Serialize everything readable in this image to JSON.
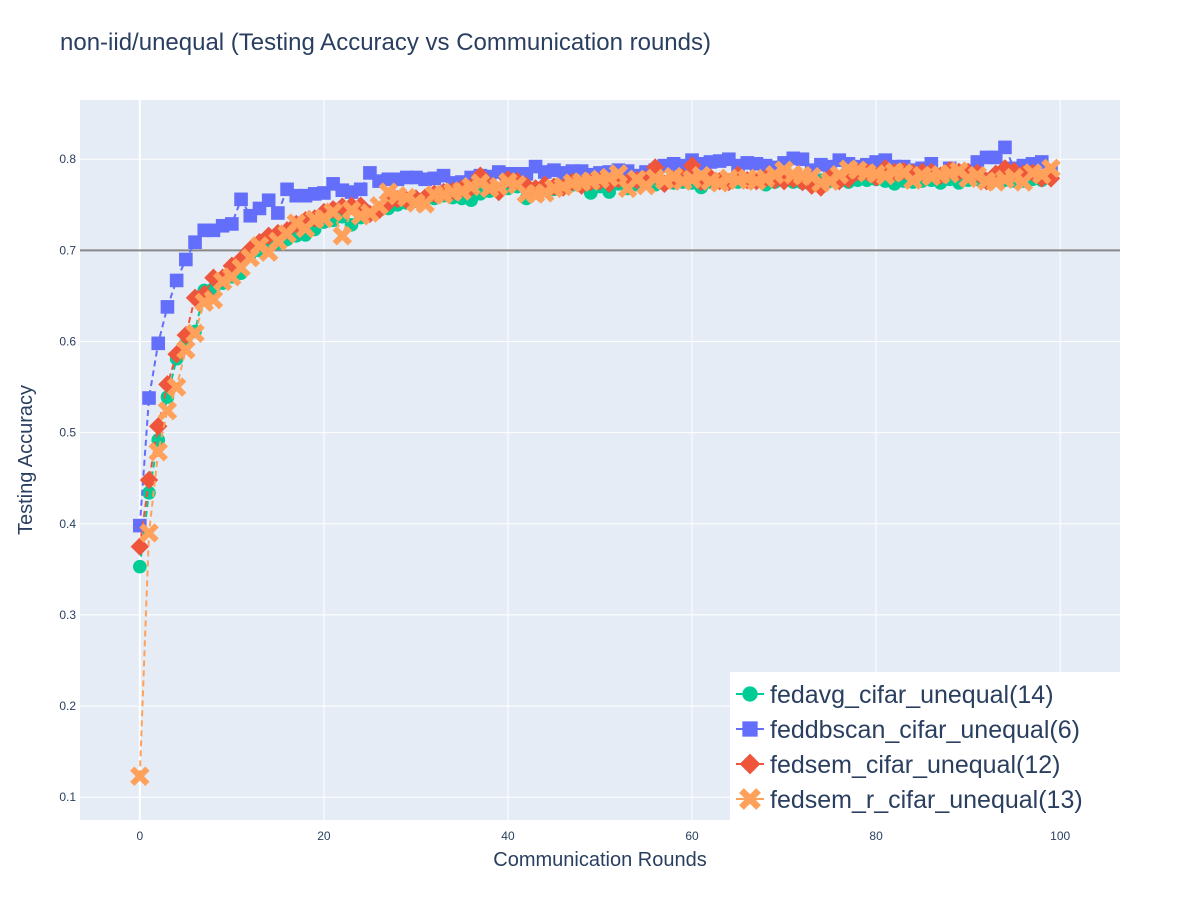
{
  "chart_data": {
    "type": "scatter",
    "title": "non-iid/unequal (Testing Accuracy vs Communication rounds)",
    "xlabel": "Communication Rounds",
    "ylabel": "Testing Accuracy",
    "xlim": [
      -6.5,
      106.5
    ],
    "ylim": [
      0.075,
      0.865
    ],
    "xticks": [
      0,
      20,
      40,
      60,
      80,
      100
    ],
    "yticks": [
      0.1,
      0.2,
      0.3,
      0.4,
      0.5,
      0.6,
      0.7,
      0.8
    ],
    "xtick_labels": [
      "0",
      "20",
      "40",
      "60",
      "80",
      "100"
    ],
    "ytick_labels": [
      "0.1",
      "0.2",
      "0.3",
      "0.4",
      "0.5",
      "0.6",
      "0.7",
      "0.8"
    ],
    "grid": true,
    "legend_position": "bottom-right",
    "reference_line": {
      "y": 0.7,
      "color": "#888888"
    },
    "series": [
      {
        "name": "fedavg_cifar_unequal(14)",
        "color": "#00cc96",
        "marker": "circle",
        "values": [
          0.353,
          0.434,
          0.492,
          0.539,
          0.581,
          0.598,
          0.611,
          0.656,
          0.658,
          0.664,
          0.671,
          0.675,
          0.696,
          0.7,
          0.704,
          0.708,
          0.712,
          0.716,
          0.717,
          0.723,
          0.731,
          0.733,
          0.737,
          0.728,
          0.736,
          0.74,
          0.744,
          0.746,
          0.75,
          0.752,
          0.754,
          0.756,
          0.757,
          0.76,
          0.758,
          0.757,
          0.755,
          0.762,
          0.765,
          0.767,
          0.768,
          0.77,
          0.757,
          0.768,
          0.766,
          0.767,
          0.771,
          0.772,
          0.772,
          0.763,
          0.77,
          0.764,
          0.773,
          0.768,
          0.772,
          0.774,
          0.772,
          0.775,
          0.774,
          0.775,
          0.774,
          0.769,
          0.775,
          0.776,
          0.776,
          0.775,
          0.777,
          0.776,
          0.772,
          0.775,
          0.776,
          0.775,
          0.774,
          0.776,
          0.777,
          0.776,
          0.776,
          0.775,
          0.777,
          0.777,
          0.778,
          0.776,
          0.773,
          0.776,
          0.775,
          0.776,
          0.777,
          0.774,
          0.778,
          0.774,
          0.777,
          0.778,
          0.776,
          0.778,
          0.777,
          0.776,
          0.776,
          0.778,
          0.777,
          0.786
        ]
      },
      {
        "name": "feddbscan_cifar_unequal(6)",
        "color": "#636efa",
        "marker": "square",
        "values": [
          0.398,
          0.538,
          0.598,
          0.638,
          0.667,
          0.69,
          0.709,
          0.722,
          0.722,
          0.727,
          0.729,
          0.756,
          0.738,
          0.746,
          0.755,
          0.741,
          0.767,
          0.76,
          0.76,
          0.762,
          0.763,
          0.773,
          0.766,
          0.764,
          0.767,
          0.785,
          0.776,
          0.778,
          0.778,
          0.78,
          0.78,
          0.778,
          0.779,
          0.782,
          0.774,
          0.775,
          0.78,
          0.782,
          0.781,
          0.786,
          0.784,
          0.784,
          0.784,
          0.792,
          0.786,
          0.788,
          0.785,
          0.787,
          0.787,
          0.783,
          0.785,
          0.786,
          0.788,
          0.787,
          0.782,
          0.786,
          0.788,
          0.793,
          0.795,
          0.793,
          0.799,
          0.795,
          0.797,
          0.798,
          0.8,
          0.793,
          0.796,
          0.795,
          0.793,
          0.791,
          0.796,
          0.801,
          0.8,
          0.788,
          0.794,
          0.792,
          0.799,
          0.795,
          0.792,
          0.794,
          0.797,
          0.799,
          0.792,
          0.792,
          0.788,
          0.79,
          0.795,
          0.783,
          0.79,
          0.786,
          0.787,
          0.797,
          0.802,
          0.802,
          0.813,
          0.79,
          0.793,
          0.795,
          0.797,
          0.786
        ]
      },
      {
        "name": "fedsem_cifar_unequal(12)",
        "color": "#ef553b",
        "marker": "diamond",
        "values": [
          0.375,
          0.448,
          0.507,
          0.553,
          0.586,
          0.607,
          0.648,
          0.652,
          0.67,
          0.67,
          0.683,
          0.69,
          0.701,
          0.709,
          0.716,
          0.719,
          0.722,
          0.729,
          0.733,
          0.735,
          0.742,
          0.745,
          0.748,
          0.749,
          0.749,
          0.74,
          0.744,
          0.752,
          0.756,
          0.755,
          0.757,
          0.758,
          0.762,
          0.764,
          0.765,
          0.768,
          0.769,
          0.782,
          0.771,
          0.764,
          0.778,
          0.776,
          0.771,
          0.768,
          0.772,
          0.77,
          0.769,
          0.775,
          0.771,
          0.775,
          0.776,
          0.773,
          0.778,
          0.775,
          0.777,
          0.778,
          0.791,
          0.773,
          0.778,
          0.78,
          0.793,
          0.775,
          0.78,
          0.776,
          0.775,
          0.783,
          0.777,
          0.776,
          0.779,
          0.777,
          0.776,
          0.778,
          0.775,
          0.771,
          0.769,
          0.78,
          0.776,
          0.778,
          0.786,
          0.786,
          0.78,
          0.79,
          0.786,
          0.787,
          0.785,
          0.786,
          0.786,
          0.782,
          0.788,
          0.786,
          0.786,
          0.785,
          0.776,
          0.784,
          0.79,
          0.787,
          0.784,
          0.785,
          0.779,
          0.779
        ]
      },
      {
        "name": "fedsem_r_cifar_unequal(13)",
        "color": "#ffa15a",
        "marker": "x",
        "values": [
          0.123,
          0.39,
          0.479,
          0.524,
          0.55,
          0.591,
          0.609,
          0.643,
          0.646,
          0.666,
          0.671,
          0.681,
          0.692,
          0.705,
          0.698,
          0.71,
          0.718,
          0.73,
          0.724,
          0.734,
          0.735,
          0.742,
          0.716,
          0.744,
          0.738,
          0.741,
          0.749,
          0.764,
          0.76,
          0.758,
          0.752,
          0.751,
          0.761,
          0.761,
          0.764,
          0.765,
          0.77,
          0.774,
          0.768,
          0.77,
          0.775,
          0.772,
          0.762,
          0.762,
          0.763,
          0.768,
          0.77,
          0.774,
          0.775,
          0.776,
          0.778,
          0.78,
          0.784,
          0.768,
          0.778,
          0.771,
          0.779,
          0.777,
          0.781,
          0.776,
          0.778,
          0.782,
          0.776,
          0.774,
          0.779,
          0.777,
          0.779,
          0.776,
          0.779,
          0.783,
          0.788,
          0.783,
          0.782,
          0.781,
          0.774,
          0.776,
          0.783,
          0.789,
          0.788,
          0.785,
          0.784,
          0.782,
          0.786,
          0.785,
          0.777,
          0.782,
          0.781,
          0.783,
          0.784,
          0.787,
          0.779,
          0.782,
          0.776,
          0.775,
          0.778,
          0.78,
          0.775,
          0.785,
          0.783,
          0.79
        ]
      }
    ]
  }
}
